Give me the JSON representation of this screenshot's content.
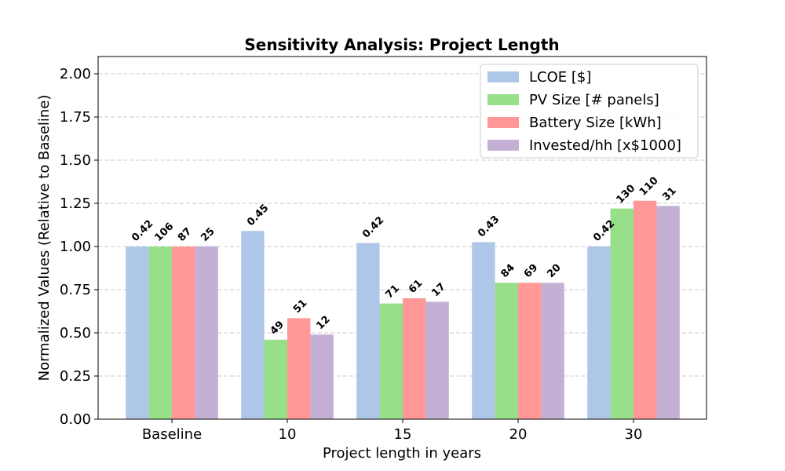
{
  "chart_data": {
    "type": "bar",
    "title": "Sensitivity Analysis: Project Length",
    "xlabel": "Project length in years",
    "ylabel": "Normalized Values (Relative to Baseline)",
    "categories": [
      "Baseline",
      "10",
      "15",
      "20",
      "30"
    ],
    "ylim": [
      0,
      2.1
    ],
    "yticks": [
      "0.00",
      "0.25",
      "0.50",
      "0.75",
      "1.00",
      "1.25",
      "1.50",
      "1.75",
      "2.00"
    ],
    "grid": "y-dashed",
    "legend_position": "top-right",
    "series": [
      {
        "name": "LCOE [$]",
        "color": "#aec7e8",
        "values": [
          1.0,
          1.09,
          1.02,
          1.025,
          1.0
        ],
        "labels": [
          "0.42",
          "0.45",
          "0.42",
          "0.43",
          "0.42"
        ]
      },
      {
        "name": "PV Size [# panels]",
        "color": "#98df8a",
        "values": [
          1.0,
          0.46,
          0.67,
          0.79,
          1.22
        ],
        "labels": [
          "106",
          "49",
          "71",
          "84",
          "130"
        ]
      },
      {
        "name": "Battery Size [kWh]",
        "color": "#ff9896",
        "values": [
          1.0,
          0.585,
          0.7,
          0.79,
          1.265
        ],
        "labels": [
          "87",
          "51",
          "61",
          "69",
          "110"
        ]
      },
      {
        "name": "Invested/hh [x$1000]",
        "color": "#c5b0d5",
        "values": [
          1.0,
          0.49,
          0.68,
          0.79,
          1.235
        ],
        "labels": [
          "25",
          "12",
          "17",
          "20",
          "31"
        ]
      }
    ]
  }
}
